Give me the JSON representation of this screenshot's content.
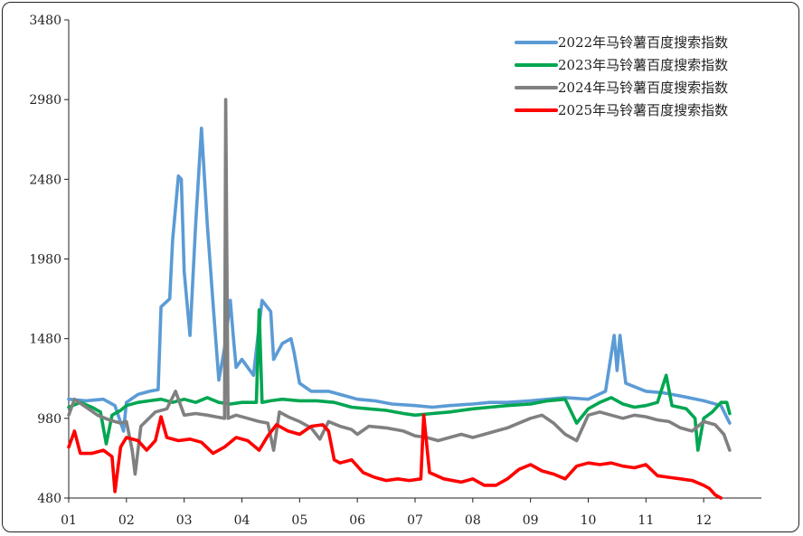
{
  "chart_data": {
    "type": "line",
    "title": "",
    "xlabel": "",
    "ylabel": "",
    "ylim": [
      480,
      3480
    ],
    "yticks": [
      480,
      980,
      1480,
      1980,
      2480,
      2980,
      3480
    ],
    "xticks": [
      "01",
      "02",
      "03",
      "04",
      "05",
      "06",
      "07",
      "08",
      "09",
      "10",
      "11",
      "12"
    ],
    "x_unit": "month",
    "xlim": [
      1,
      13
    ],
    "grid": false,
    "legend_position": "top-right",
    "series": [
      {
        "name": "2022年马铃薯百度搜索指数",
        "color": "#5b9bd5",
        "points": [
          [
            1.0,
            1100
          ],
          [
            1.3,
            1090
          ],
          [
            1.6,
            1100
          ],
          [
            1.8,
            1060
          ],
          [
            1.95,
            900
          ],
          [
            2.0,
            1080
          ],
          [
            2.2,
            1130
          ],
          [
            2.4,
            1150
          ],
          [
            2.55,
            1160
          ],
          [
            2.6,
            1680
          ],
          [
            2.75,
            1730
          ],
          [
            2.8,
            2100
          ],
          [
            2.9,
            2500
          ],
          [
            2.95,
            2480
          ],
          [
            3.0,
            1900
          ],
          [
            3.1,
            1500
          ],
          [
            3.2,
            2200
          ],
          [
            3.3,
            2800
          ],
          [
            3.4,
            2200
          ],
          [
            3.5,
            1700
          ],
          [
            3.6,
            1220
          ],
          [
            3.7,
            1420
          ],
          [
            3.8,
            1720
          ],
          [
            3.85,
            1500
          ],
          [
            3.9,
            1300
          ],
          [
            4.0,
            1350
          ],
          [
            4.1,
            1300
          ],
          [
            4.2,
            1250
          ],
          [
            4.35,
            1720
          ],
          [
            4.5,
            1650
          ],
          [
            4.55,
            1350
          ],
          [
            4.7,
            1450
          ],
          [
            4.85,
            1480
          ],
          [
            4.9,
            1400
          ],
          [
            5.0,
            1200
          ],
          [
            5.2,
            1150
          ],
          [
            5.5,
            1150
          ],
          [
            5.8,
            1120
          ],
          [
            6.0,
            1100
          ],
          [
            6.3,
            1090
          ],
          [
            6.6,
            1070
          ],
          [
            7.0,
            1060
          ],
          [
            7.3,
            1050
          ],
          [
            7.6,
            1060
          ],
          [
            8.0,
            1070
          ],
          [
            8.3,
            1080
          ],
          [
            8.6,
            1080
          ],
          [
            9.0,
            1090
          ],
          [
            9.3,
            1100
          ],
          [
            9.6,
            1110
          ],
          [
            10.0,
            1100
          ],
          [
            10.3,
            1150
          ],
          [
            10.45,
            1500
          ],
          [
            10.5,
            1280
          ],
          [
            10.55,
            1500
          ],
          [
            10.65,
            1200
          ],
          [
            11.0,
            1150
          ],
          [
            11.3,
            1140
          ],
          [
            11.6,
            1120
          ],
          [
            12.0,
            1090
          ],
          [
            12.3,
            1060
          ],
          [
            12.45,
            950
          ]
        ]
      },
      {
        "name": "2023年马铃薯百度搜索指数",
        "color": "#00a651",
        "points": [
          [
            1.0,
            1050
          ],
          [
            1.2,
            1080
          ],
          [
            1.4,
            1050
          ],
          [
            1.55,
            1020
          ],
          [
            1.65,
            820
          ],
          [
            1.75,
            1000
          ],
          [
            1.9,
            1030
          ],
          [
            2.0,
            1060
          ],
          [
            2.2,
            1080
          ],
          [
            2.4,
            1090
          ],
          [
            2.6,
            1100
          ],
          [
            2.8,
            1080
          ],
          [
            3.0,
            1100
          ],
          [
            3.2,
            1080
          ],
          [
            3.4,
            1110
          ],
          [
            3.6,
            1080
          ],
          [
            3.8,
            1070
          ],
          [
            4.0,
            1080
          ],
          [
            4.25,
            1080
          ],
          [
            4.3,
            1660
          ],
          [
            4.35,
            1080
          ],
          [
            4.5,
            1090
          ],
          [
            4.7,
            1100
          ],
          [
            5.0,
            1090
          ],
          [
            5.3,
            1090
          ],
          [
            5.6,
            1080
          ],
          [
            5.9,
            1050
          ],
          [
            6.2,
            1040
          ],
          [
            6.5,
            1030
          ],
          [
            6.8,
            1010
          ],
          [
            7.0,
            1000
          ],
          [
            7.3,
            1010
          ],
          [
            7.6,
            1020
          ],
          [
            8.0,
            1040
          ],
          [
            8.3,
            1050
          ],
          [
            8.6,
            1060
          ],
          [
            9.0,
            1070
          ],
          [
            9.3,
            1090
          ],
          [
            9.6,
            1100
          ],
          [
            9.8,
            950
          ],
          [
            10.0,
            1040
          ],
          [
            10.2,
            1080
          ],
          [
            10.4,
            1110
          ],
          [
            10.6,
            1070
          ],
          [
            10.8,
            1050
          ],
          [
            11.0,
            1060
          ],
          [
            11.2,
            1080
          ],
          [
            11.35,
            1250
          ],
          [
            11.45,
            1060
          ],
          [
            11.7,
            1040
          ],
          [
            11.85,
            980
          ],
          [
            11.9,
            780
          ],
          [
            12.0,
            980
          ],
          [
            12.15,
            1020
          ],
          [
            12.3,
            1080
          ],
          [
            12.4,
            1080
          ],
          [
            12.45,
            1010
          ]
        ]
      },
      {
        "name": "2024年马铃薯百度搜索指数",
        "color": "#808080",
        "points": [
          [
            1.0,
            1000
          ],
          [
            1.1,
            1100
          ],
          [
            1.3,
            1050
          ],
          [
            1.5,
            1000
          ],
          [
            1.7,
            970
          ],
          [
            1.9,
            950
          ],
          [
            2.0,
            960
          ],
          [
            2.1,
            780
          ],
          [
            2.15,
            630
          ],
          [
            2.25,
            930
          ],
          [
            2.5,
            1020
          ],
          [
            2.7,
            1040
          ],
          [
            2.85,
            1150
          ],
          [
            3.0,
            1000
          ],
          [
            3.2,
            1010
          ],
          [
            3.4,
            1000
          ],
          [
            3.55,
            990
          ],
          [
            3.7,
            980
          ],
          [
            3.72,
            2980
          ],
          [
            3.76,
            980
          ],
          [
            3.9,
            1000
          ],
          [
            4.1,
            980
          ],
          [
            4.3,
            960
          ],
          [
            4.45,
            950
          ],
          [
            4.55,
            780
          ],
          [
            4.65,
            1020
          ],
          [
            4.8,
            990
          ],
          [
            5.0,
            960
          ],
          [
            5.2,
            920
          ],
          [
            5.35,
            850
          ],
          [
            5.5,
            960
          ],
          [
            5.7,
            930
          ],
          [
            5.9,
            910
          ],
          [
            6.0,
            880
          ],
          [
            6.2,
            930
          ],
          [
            6.5,
            920
          ],
          [
            6.8,
            900
          ],
          [
            7.0,
            870
          ],
          [
            7.2,
            860
          ],
          [
            7.4,
            840
          ],
          [
            7.6,
            860
          ],
          [
            7.8,
            880
          ],
          [
            8.0,
            860
          ],
          [
            8.2,
            880
          ],
          [
            8.4,
            900
          ],
          [
            8.6,
            920
          ],
          [
            8.8,
            950
          ],
          [
            9.0,
            980
          ],
          [
            9.2,
            1000
          ],
          [
            9.4,
            950
          ],
          [
            9.6,
            880
          ],
          [
            9.8,
            840
          ],
          [
            10.0,
            1000
          ],
          [
            10.2,
            1020
          ],
          [
            10.4,
            1000
          ],
          [
            10.6,
            980
          ],
          [
            10.8,
            1000
          ],
          [
            11.0,
            990
          ],
          [
            11.2,
            970
          ],
          [
            11.4,
            960
          ],
          [
            11.6,
            920
          ],
          [
            11.8,
            900
          ],
          [
            12.0,
            960
          ],
          [
            12.2,
            940
          ],
          [
            12.35,
            880
          ],
          [
            12.45,
            780
          ]
        ]
      },
      {
        "name": "2025年马铃薯百度搜索指数",
        "color": "#ff0000",
        "points": [
          [
            1.0,
            800
          ],
          [
            1.1,
            900
          ],
          [
            1.2,
            760
          ],
          [
            1.4,
            760
          ],
          [
            1.6,
            780
          ],
          [
            1.75,
            740
          ],
          [
            1.8,
            520
          ],
          [
            1.9,
            800
          ],
          [
            2.0,
            860
          ],
          [
            2.2,
            840
          ],
          [
            2.35,
            780
          ],
          [
            2.5,
            840
          ],
          [
            2.6,
            990
          ],
          [
            2.7,
            860
          ],
          [
            2.9,
            840
          ],
          [
            3.1,
            850
          ],
          [
            3.3,
            830
          ],
          [
            3.5,
            760
          ],
          [
            3.7,
            800
          ],
          [
            3.9,
            860
          ],
          [
            4.1,
            840
          ],
          [
            4.3,
            780
          ],
          [
            4.45,
            870
          ],
          [
            4.6,
            940
          ],
          [
            4.8,
            900
          ],
          [
            5.0,
            880
          ],
          [
            5.2,
            930
          ],
          [
            5.4,
            940
          ],
          [
            5.5,
            900
          ],
          [
            5.6,
            720
          ],
          [
            5.7,
            700
          ],
          [
            5.9,
            720
          ],
          [
            6.1,
            640
          ],
          [
            6.3,
            610
          ],
          [
            6.5,
            590
          ],
          [
            6.7,
            600
          ],
          [
            6.9,
            590
          ],
          [
            7.1,
            600
          ],
          [
            7.15,
            1000
          ],
          [
            7.25,
            640
          ],
          [
            7.5,
            600
          ],
          [
            7.8,
            580
          ],
          [
            8.0,
            600
          ],
          [
            8.2,
            560
          ],
          [
            8.4,
            560
          ],
          [
            8.6,
            600
          ],
          [
            8.8,
            660
          ],
          [
            9.0,
            690
          ],
          [
            9.2,
            650
          ],
          [
            9.4,
            630
          ],
          [
            9.6,
            600
          ],
          [
            9.8,
            680
          ],
          [
            10.0,
            700
          ],
          [
            10.2,
            690
          ],
          [
            10.4,
            700
          ],
          [
            10.6,
            680
          ],
          [
            10.8,
            670
          ],
          [
            11.0,
            690
          ],
          [
            11.2,
            620
          ],
          [
            11.4,
            610
          ],
          [
            11.6,
            600
          ],
          [
            11.8,
            590
          ],
          [
            12.0,
            560
          ],
          [
            12.1,
            540
          ],
          [
            12.2,
            500
          ],
          [
            12.3,
            480
          ]
        ]
      }
    ]
  }
}
